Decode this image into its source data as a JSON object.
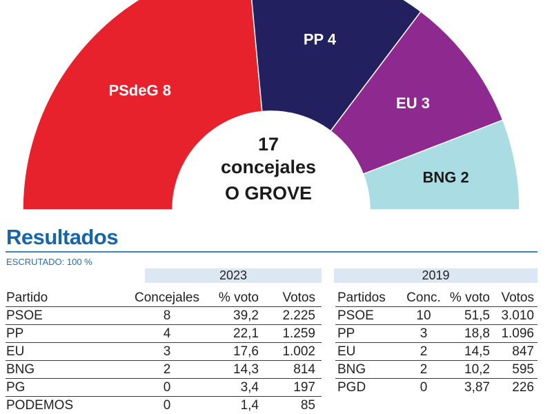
{
  "chart_data": {
    "type": "hemicycle",
    "center_lines": [
      "17",
      "concejales",
      "O GROVE"
    ],
    "total_seats": 17,
    "series": [
      {
        "name": "PSdeG",
        "label": "PSdeG 8",
        "seats": 8,
        "color": "#e8222d",
        "text_color": "#ffffff"
      },
      {
        "name": "PP",
        "label": "PP 4",
        "seats": 4,
        "color": "#23205f",
        "text_color": "#ffffff"
      },
      {
        "name": "EU",
        "label": "EU 3",
        "seats": 3,
        "color": "#8e2a8f",
        "text_color": "#ffffff"
      },
      {
        "name": "BNG",
        "label": "BNG 2",
        "seats": 2,
        "color": "#a9dde3",
        "text_color": "#1a1a1a"
      }
    ]
  },
  "results": {
    "title": "Resultados",
    "scrutiny": "ESCRUTADO: 100 %",
    "t2023": {
      "year": "2023",
      "headers": [
        "Partido",
        "Concejales",
        "% voto",
        "Votos"
      ],
      "rows": [
        [
          "PSOE",
          "8",
          "39,2",
          "2.225"
        ],
        [
          "PP",
          "4",
          "22,1",
          "1.259"
        ],
        [
          "EU",
          "3",
          "17,6",
          "1.002"
        ],
        [
          "BNG",
          "2",
          "14,3",
          "814"
        ],
        [
          "PG",
          "0",
          "3,4",
          "197"
        ],
        [
          "PODEMOS",
          "0",
          "1,4",
          "85"
        ]
      ]
    },
    "t2019": {
      "year": "2019",
      "headers": [
        "Partidos",
        "Conc.",
        "% voto",
        "Votos"
      ],
      "rows": [
        [
          "PSOE",
          "10",
          "51,5",
          "3.010"
        ],
        [
          "PP",
          "3",
          "18,8",
          "1.096"
        ],
        [
          "EU",
          "2",
          "14,5",
          "847"
        ],
        [
          "BNG",
          "2",
          "10,2",
          "595"
        ],
        [
          "PGD",
          "0",
          "3,87",
          "226"
        ]
      ]
    }
  }
}
